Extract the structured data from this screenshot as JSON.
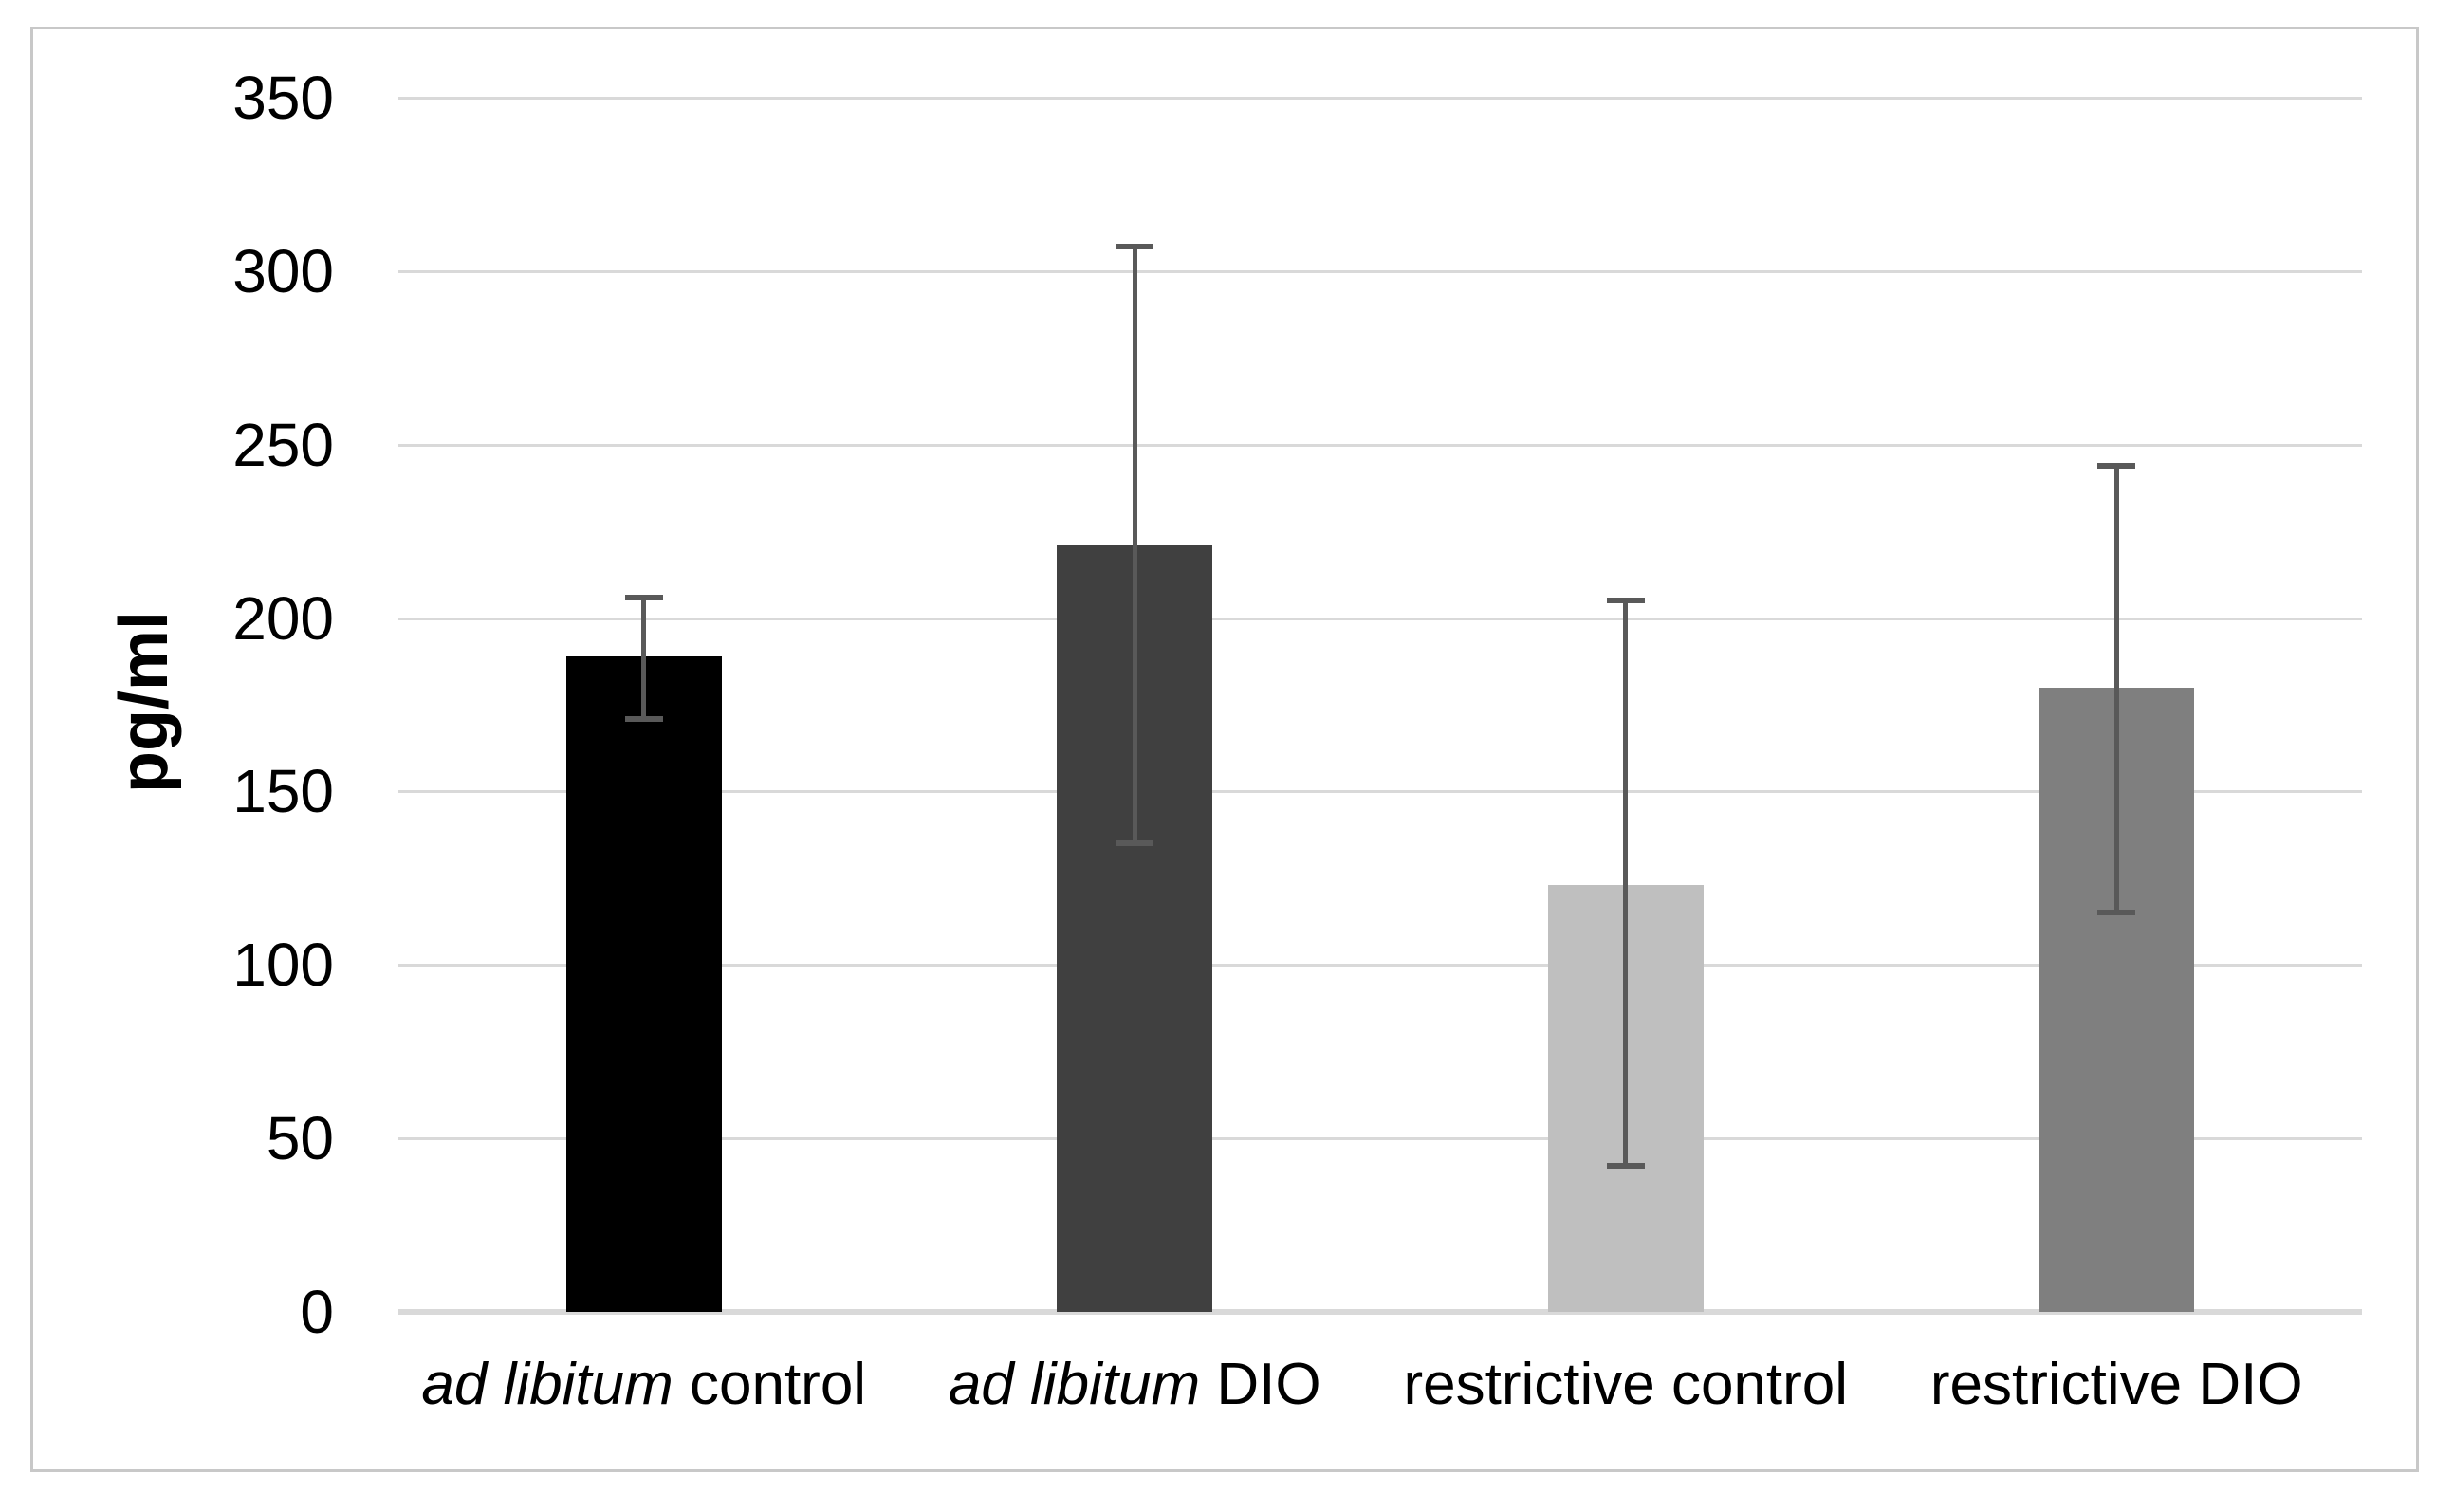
{
  "chart_data": {
    "type": "bar",
    "title": "",
    "xlabel": "",
    "ylabel": "pg/ml",
    "ylim": [
      0,
      350
    ],
    "yticks": [
      0,
      50,
      100,
      150,
      200,
      250,
      300,
      350
    ],
    "grid": "horizontal",
    "legend": "none",
    "categories": [
      {
        "label": "ad libitum control",
        "segments": [
          {
            "text": "ad libitum",
            "italic": true
          },
          {
            "text": " control",
            "italic": false
          }
        ]
      },
      {
        "label": "ad libitum DIO",
        "segments": [
          {
            "text": "ad libitum",
            "italic": true
          },
          {
            "text": " DIO",
            "italic": false
          }
        ]
      },
      {
        "label": "restrictive control",
        "segments": [
          {
            "text": "restrictive control",
            "italic": false
          }
        ]
      },
      {
        "label": "restrictive DIO",
        "segments": [
          {
            "text": "restrictive DIO",
            "italic": false
          }
        ]
      }
    ],
    "values": [
      189,
      221,
      123,
      180
    ],
    "error_high": [
      206,
      307,
      205,
      244
    ],
    "error_low": [
      171,
      135,
      42,
      115
    ],
    "bar_colors": [
      "#000000",
      "#404040",
      "#bfbfbf",
      "#7f7f7f"
    ],
    "error_bar_color": "#595959",
    "gridline_color": "#d9d9d9",
    "axis_line_color": "#d9d9d9",
    "border_color": "#c8c8c8",
    "background_color": "#ffffff"
  }
}
